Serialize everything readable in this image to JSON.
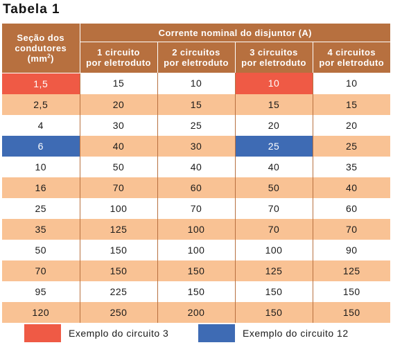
{
  "title": "Tabela 1",
  "header": {
    "section_line1": "Seção dos",
    "section_line2": "condutores",
    "section_unit_pre": "(mm",
    "section_unit_sup": "2",
    "section_unit_post": ")",
    "group": "Corrente nominal do disjuntor (A)",
    "columns": [
      {
        "line1": "1 circuito",
        "line2": "por eletroduto"
      },
      {
        "line1": "2 circuitos",
        "line2": "por eletroduto"
      },
      {
        "line1": "3 circuitos",
        "line2": "por eletroduto"
      },
      {
        "line1": "4 circuitos",
        "line2": "por eletroduto"
      }
    ]
  },
  "rows": [
    {
      "section": "1,5",
      "values": [
        "15",
        "10",
        "10",
        "10"
      ],
      "highlight": "red"
    },
    {
      "section": "2,5",
      "values": [
        "20",
        "15",
        "15",
        "15"
      ]
    },
    {
      "section": "4",
      "values": [
        "30",
        "25",
        "20",
        "20"
      ]
    },
    {
      "section": "6",
      "values": [
        "40",
        "30",
        "25",
        "25"
      ],
      "highlight": "blue"
    },
    {
      "section": "10",
      "values": [
        "50",
        "40",
        "40",
        "35"
      ]
    },
    {
      "section": "16",
      "values": [
        "70",
        "60",
        "50",
        "40"
      ]
    },
    {
      "section": "25",
      "values": [
        "100",
        "70",
        "70",
        "60"
      ]
    },
    {
      "section": "35",
      "values": [
        "125",
        "100",
        "70",
        "70"
      ]
    },
    {
      "section": "50",
      "values": [
        "150",
        "100",
        "100",
        "90"
      ]
    },
    {
      "section": "70",
      "values": [
        "150",
        "150",
        "125",
        "125"
      ]
    },
    {
      "section": "95",
      "values": [
        "225",
        "150",
        "150",
        "150"
      ]
    },
    {
      "section": "120",
      "values": [
        "250",
        "200",
        "150",
        "150"
      ]
    }
  ],
  "legend": [
    {
      "label": "Exemplo do circuito 3",
      "color": "#ef5a45"
    },
    {
      "label": "Exemplo do circuito 12",
      "color": "#3e6bb4"
    }
  ],
  "colors": {
    "header": "#b7703f",
    "row_alt": "#f9c294",
    "highlight_red": "#ef5a45",
    "highlight_blue": "#3e6bb4"
  }
}
